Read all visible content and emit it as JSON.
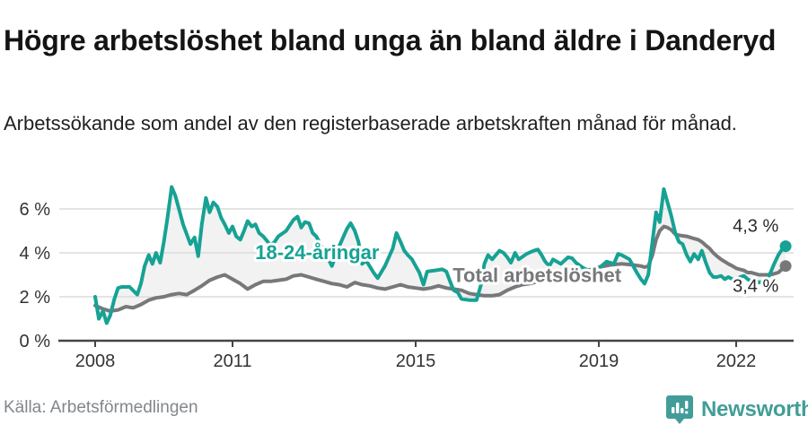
{
  "header": {
    "title": "Högre arbetslöshet bland unga än bland äldre i Danderyd",
    "subtitle": "Arbetssökande som andel av den registerbaserade arbetskraften månad för månad."
  },
  "footer": {
    "source": "Källa: Arbetsförmedlingen",
    "brand": "Newsworthy",
    "logo_icon": "bar-chart-speech-bubble-icon",
    "brand_color": "#429d99"
  },
  "chart_data": {
    "type": "line",
    "title": "",
    "xlabel": "",
    "ylabel": "",
    "grid": true,
    "x_axis": {
      "ticks": [
        2008,
        2011,
        2015,
        2019,
        2022
      ],
      "tick_labels": [
        "2008",
        "2011",
        "2015",
        "2019",
        "2022"
      ],
      "range": [
        2007.9,
        2023.3
      ]
    },
    "y_axis": {
      "ticks": [
        0,
        2,
        4,
        6
      ],
      "tick_labels": [
        "0 %",
        "2 %",
        "4 %",
        "6 %"
      ],
      "range": [
        0,
        7.4
      ],
      "unit": "%"
    },
    "fill_between_color": "#f2f2f2",
    "axis_color": "#454545",
    "grid_color": "#dcdcdc",
    "tick_text_color": "#333333",
    "end_label_color": "#2b2b2b",
    "series": [
      {
        "name": "18-24-åringar",
        "color": "#16a294",
        "end_label": "4,3 %",
        "end_value": 4.3,
        "label_anchor": {
          "t": 2012.85,
          "v": 4.05
        },
        "points": [
          [
            2008.0,
            2.0
          ],
          [
            2008.08,
            1.0
          ],
          [
            2008.17,
            1.35
          ],
          [
            2008.25,
            0.8
          ],
          [
            2008.33,
            1.15
          ],
          [
            2008.42,
            1.9
          ],
          [
            2008.5,
            2.4
          ],
          [
            2008.58,
            2.45
          ],
          [
            2008.75,
            2.45
          ],
          [
            2008.92,
            2.1
          ],
          [
            2009.0,
            2.6
          ],
          [
            2009.08,
            3.4
          ],
          [
            2009.17,
            3.9
          ],
          [
            2009.25,
            3.5
          ],
          [
            2009.33,
            4.0
          ],
          [
            2009.42,
            3.55
          ],
          [
            2009.5,
            4.5
          ],
          [
            2009.58,
            5.6
          ],
          [
            2009.67,
            7.0
          ],
          [
            2009.75,
            6.6
          ],
          [
            2009.83,
            6.0
          ],
          [
            2009.92,
            5.3
          ],
          [
            2010.0,
            4.85
          ],
          [
            2010.08,
            4.4
          ],
          [
            2010.17,
            4.7
          ],
          [
            2010.25,
            3.85
          ],
          [
            2010.33,
            5.3
          ],
          [
            2010.42,
            6.5
          ],
          [
            2010.5,
            5.85
          ],
          [
            2010.58,
            6.3
          ],
          [
            2010.67,
            6.1
          ],
          [
            2010.75,
            5.6
          ],
          [
            2010.83,
            5.3
          ],
          [
            2010.92,
            4.9
          ],
          [
            2011.0,
            5.2
          ],
          [
            2011.08,
            4.75
          ],
          [
            2011.17,
            4.6
          ],
          [
            2011.25,
            5.0
          ],
          [
            2011.33,
            5.45
          ],
          [
            2011.42,
            5.2
          ],
          [
            2011.5,
            5.3
          ],
          [
            2011.58,
            4.9
          ],
          [
            2011.67,
            4.75
          ],
          [
            2011.75,
            4.55
          ],
          [
            2011.83,
            4.35
          ],
          [
            2011.92,
            4.5
          ],
          [
            2012.0,
            4.75
          ],
          [
            2012.17,
            5.0
          ],
          [
            2012.33,
            5.5
          ],
          [
            2012.42,
            5.65
          ],
          [
            2012.5,
            5.15
          ],
          [
            2012.58,
            5.4
          ],
          [
            2012.67,
            5.35
          ],
          [
            2012.75,
            4.9
          ],
          [
            2012.83,
            4.75
          ],
          [
            2012.92,
            4.4
          ],
          [
            2013.0,
            4.1
          ],
          [
            2013.17,
            3.4
          ],
          [
            2013.33,
            4.3
          ],
          [
            2013.5,
            5.1
          ],
          [
            2013.58,
            5.35
          ],
          [
            2013.67,
            5.0
          ],
          [
            2013.75,
            4.5
          ],
          [
            2013.83,
            3.5
          ],
          [
            2013.92,
            3.65
          ],
          [
            2014.08,
            3.1
          ],
          [
            2014.17,
            2.85
          ],
          [
            2014.33,
            3.4
          ],
          [
            2014.5,
            4.2
          ],
          [
            2014.58,
            4.9
          ],
          [
            2014.67,
            4.5
          ],
          [
            2014.75,
            4.1
          ],
          [
            2014.83,
            3.9
          ],
          [
            2014.92,
            3.7
          ],
          [
            2015.0,
            3.4
          ],
          [
            2015.08,
            3.1
          ],
          [
            2015.17,
            2.55
          ],
          [
            2015.25,
            3.15
          ],
          [
            2015.42,
            3.2
          ],
          [
            2015.58,
            3.25
          ],
          [
            2015.67,
            3.15
          ],
          [
            2015.75,
            2.7
          ],
          [
            2015.83,
            2.3
          ],
          [
            2015.92,
            2.2
          ],
          [
            2016.0,
            1.9
          ],
          [
            2016.17,
            1.85
          ],
          [
            2016.33,
            1.85
          ],
          [
            2016.42,
            2.5
          ],
          [
            2016.5,
            3.5
          ],
          [
            2016.58,
            3.9
          ],
          [
            2016.67,
            3.7
          ],
          [
            2016.83,
            4.1
          ],
          [
            2016.92,
            4.0
          ],
          [
            2017.0,
            3.8
          ],
          [
            2017.08,
            3.55
          ],
          [
            2017.17,
            4.0
          ],
          [
            2017.25,
            3.7
          ],
          [
            2017.42,
            3.95
          ],
          [
            2017.58,
            4.1
          ],
          [
            2017.67,
            4.15
          ],
          [
            2017.75,
            3.9
          ],
          [
            2017.83,
            3.6
          ],
          [
            2017.92,
            3.4
          ],
          [
            2018.0,
            3.7
          ],
          [
            2018.17,
            3.5
          ],
          [
            2018.33,
            3.8
          ],
          [
            2018.42,
            3.75
          ],
          [
            2018.5,
            3.55
          ],
          [
            2018.67,
            3.3
          ],
          [
            2018.83,
            3.15
          ],
          [
            2019.0,
            3.3
          ],
          [
            2019.17,
            3.6
          ],
          [
            2019.33,
            3.5
          ],
          [
            2019.42,
            3.95
          ],
          [
            2019.5,
            3.9
          ],
          [
            2019.67,
            3.7
          ],
          [
            2019.75,
            3.4
          ],
          [
            2019.83,
            3.1
          ],
          [
            2019.92,
            2.8
          ],
          [
            2020.0,
            2.6
          ],
          [
            2020.08,
            3.0
          ],
          [
            2020.17,
            4.5
          ],
          [
            2020.25,
            5.85
          ],
          [
            2020.33,
            5.4
          ],
          [
            2020.42,
            6.9
          ],
          [
            2020.5,
            6.3
          ],
          [
            2020.58,
            5.7
          ],
          [
            2020.67,
            4.9
          ],
          [
            2020.75,
            4.5
          ],
          [
            2020.83,
            4.4
          ],
          [
            2020.92,
            3.9
          ],
          [
            2021.0,
            3.6
          ],
          [
            2021.08,
            3.95
          ],
          [
            2021.17,
            3.7
          ],
          [
            2021.25,
            4.1
          ],
          [
            2021.33,
            3.6
          ],
          [
            2021.42,
            3.1
          ],
          [
            2021.5,
            2.9
          ],
          [
            2021.58,
            2.9
          ],
          [
            2021.67,
            2.95
          ],
          [
            2021.75,
            2.8
          ],
          [
            2021.83,
            2.9
          ],
          [
            2021.92,
            2.8
          ],
          [
            2022.0,
            2.7
          ],
          [
            2022.08,
            2.9
          ],
          [
            2022.17,
            2.95
          ],
          [
            2022.25,
            2.8
          ],
          [
            2022.33,
            2.7
          ],
          [
            2022.42,
            2.75
          ],
          [
            2022.5,
            2.65
          ],
          [
            2022.58,
            2.7
          ],
          [
            2022.67,
            2.8
          ],
          [
            2022.75,
            3.1
          ],
          [
            2022.83,
            3.5
          ],
          [
            2022.92,
            3.9
          ],
          [
            2023.0,
            4.15
          ],
          [
            2023.08,
            4.3
          ]
        ]
      },
      {
        "name": "Total arbetslöshet",
        "color": "#77787a",
        "end_label": "3,4 %",
        "end_value": 3.4,
        "label_anchor": {
          "t": 2017.65,
          "v": 3.0
        },
        "points": [
          [
            2008.0,
            1.6
          ],
          [
            2008.17,
            1.45
          ],
          [
            2008.33,
            1.35
          ],
          [
            2008.5,
            1.4
          ],
          [
            2008.67,
            1.55
          ],
          [
            2008.83,
            1.5
          ],
          [
            2009.0,
            1.65
          ],
          [
            2009.17,
            1.85
          ],
          [
            2009.33,
            1.95
          ],
          [
            2009.5,
            2.0
          ],
          [
            2009.67,
            2.1
          ],
          [
            2009.83,
            2.15
          ],
          [
            2010.0,
            2.1
          ],
          [
            2010.17,
            2.3
          ],
          [
            2010.33,
            2.5
          ],
          [
            2010.5,
            2.75
          ],
          [
            2010.67,
            2.9
          ],
          [
            2010.83,
            3.0
          ],
          [
            2011.0,
            2.8
          ],
          [
            2011.17,
            2.6
          ],
          [
            2011.33,
            2.35
          ],
          [
            2011.5,
            2.55
          ],
          [
            2011.67,
            2.7
          ],
          [
            2011.83,
            2.7
          ],
          [
            2012.0,
            2.75
          ],
          [
            2012.17,
            2.8
          ],
          [
            2012.33,
            2.95
          ],
          [
            2012.5,
            3.0
          ],
          [
            2012.67,
            2.9
          ],
          [
            2012.83,
            2.8
          ],
          [
            2013.0,
            2.7
          ],
          [
            2013.17,
            2.6
          ],
          [
            2013.33,
            2.55
          ],
          [
            2013.5,
            2.45
          ],
          [
            2013.67,
            2.65
          ],
          [
            2013.83,
            2.55
          ],
          [
            2014.0,
            2.5
          ],
          [
            2014.17,
            2.4
          ],
          [
            2014.33,
            2.35
          ],
          [
            2014.5,
            2.45
          ],
          [
            2014.67,
            2.55
          ],
          [
            2014.83,
            2.45
          ],
          [
            2015.0,
            2.4
          ],
          [
            2015.17,
            2.35
          ],
          [
            2015.33,
            2.4
          ],
          [
            2015.5,
            2.5
          ],
          [
            2015.67,
            2.4
          ],
          [
            2015.83,
            2.35
          ],
          [
            2016.0,
            2.3
          ],
          [
            2016.17,
            2.15
          ],
          [
            2016.33,
            2.1
          ],
          [
            2016.5,
            2.05
          ],
          [
            2016.67,
            2.05
          ],
          [
            2016.83,
            2.1
          ],
          [
            2017.0,
            2.3
          ],
          [
            2017.17,
            2.45
          ],
          [
            2017.33,
            2.55
          ],
          [
            2017.5,
            2.6
          ],
          [
            2017.67,
            2.7
          ],
          [
            2017.83,
            2.8
          ],
          [
            2018.0,
            2.9
          ],
          [
            2018.25,
            3.0
          ],
          [
            2018.5,
            3.1
          ],
          [
            2018.75,
            3.2
          ],
          [
            2019.0,
            3.35
          ],
          [
            2019.25,
            3.45
          ],
          [
            2019.5,
            3.5
          ],
          [
            2019.75,
            3.45
          ],
          [
            2019.92,
            3.4
          ],
          [
            2020.0,
            3.35
          ],
          [
            2020.08,
            3.4
          ],
          [
            2020.17,
            3.9
          ],
          [
            2020.25,
            4.6
          ],
          [
            2020.33,
            5.0
          ],
          [
            2020.42,
            5.2
          ],
          [
            2020.5,
            5.15
          ],
          [
            2020.58,
            5.05
          ],
          [
            2020.67,
            4.85
          ],
          [
            2020.75,
            4.8
          ],
          [
            2020.92,
            4.75
          ],
          [
            2021.0,
            4.7
          ],
          [
            2021.08,
            4.65
          ],
          [
            2021.17,
            4.6
          ],
          [
            2021.25,
            4.5
          ],
          [
            2021.33,
            4.35
          ],
          [
            2021.42,
            4.2
          ],
          [
            2021.5,
            4.0
          ],
          [
            2021.58,
            3.85
          ],
          [
            2021.67,
            3.7
          ],
          [
            2021.75,
            3.6
          ],
          [
            2021.83,
            3.5
          ],
          [
            2021.92,
            3.4
          ],
          [
            2022.0,
            3.3
          ],
          [
            2022.08,
            3.25
          ],
          [
            2022.17,
            3.2
          ],
          [
            2022.25,
            3.1
          ],
          [
            2022.33,
            3.1
          ],
          [
            2022.42,
            3.05
          ],
          [
            2022.5,
            3.0
          ],
          [
            2022.58,
            3.0
          ],
          [
            2022.67,
            3.0
          ],
          [
            2022.75,
            3.0
          ],
          [
            2022.83,
            3.05
          ],
          [
            2022.92,
            3.1
          ],
          [
            2023.0,
            3.25
          ],
          [
            2023.08,
            3.4
          ]
        ]
      }
    ]
  }
}
